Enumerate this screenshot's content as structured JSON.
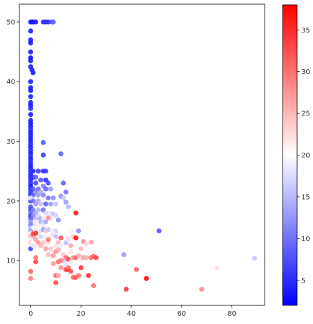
{
  "chart_data": {
    "type": "scatter",
    "title": "",
    "xlabel": "",
    "ylabel": "",
    "xlim": [
      -4.5,
      93
    ],
    "ylim": [
      2.5,
      53
    ],
    "xticks": [
      0,
      20,
      40,
      60,
      80
    ],
    "yticks": [
      10,
      20,
      30,
      40,
      50
    ],
    "grid": false,
    "colormap": {
      "name": "bwr",
      "low_color": "#0000ff",
      "mid_color": "#ffffff",
      "high_color": "#ff0000",
      "range": [
        2,
        38
      ],
      "ticks": [
        5,
        10,
        15,
        20,
        25,
        30,
        35
      ]
    },
    "points": [
      [
        0,
        50,
        4
      ],
      [
        1,
        50,
        4
      ],
      [
        0.5,
        50,
        4
      ],
      [
        2,
        50,
        4
      ],
      [
        5,
        50,
        5
      ],
      [
        6,
        50,
        5
      ],
      [
        7,
        50,
        5
      ],
      [
        8.5,
        50,
        8
      ],
      [
        9,
        50,
        9
      ],
      [
        0,
        48.5,
        4
      ],
      [
        0,
        47,
        4
      ],
      [
        0,
        46.5,
        4
      ],
      [
        0,
        45,
        4
      ],
      [
        0,
        44,
        3
      ],
      [
        0,
        43.5,
        4
      ],
      [
        0,
        42.5,
        4
      ],
      [
        0.5,
        42,
        4
      ],
      [
        1,
        41.5,
        4
      ],
      [
        0,
        40,
        4
      ],
      [
        0,
        39,
        4
      ],
      [
        0,
        38.5,
        4
      ],
      [
        0,
        37.5,
        4
      ],
      [
        0,
        36.5,
        4
      ],
      [
        0,
        36,
        4
      ],
      [
        0,
        35.5,
        5
      ],
      [
        0,
        34.5,
        4
      ],
      [
        0,
        33.5,
        4
      ],
      [
        0,
        33,
        4
      ],
      [
        0,
        32.5,
        4
      ],
      [
        0,
        32,
        5
      ],
      [
        0,
        31.5,
        4
      ],
      [
        0,
        31,
        4
      ],
      [
        0,
        30.5,
        4
      ],
      [
        0,
        30,
        4
      ],
      [
        0,
        29.5,
        5
      ],
      [
        0,
        29,
        4
      ],
      [
        0,
        28.5,
        5
      ],
      [
        0,
        28,
        4
      ],
      [
        0,
        27.5,
        5
      ],
      [
        0,
        27,
        4
      ],
      [
        0,
        26.5,
        5
      ],
      [
        0,
        26,
        4
      ],
      [
        5,
        29.8,
        8
      ],
      [
        5,
        27.7,
        6
      ],
      [
        12,
        27.9,
        9
      ],
      [
        0,
        25.5,
        4
      ],
      [
        0,
        25,
        5
      ],
      [
        1,
        25,
        5
      ],
      [
        3,
        25,
        6
      ],
      [
        5,
        25,
        5
      ],
      [
        6,
        25,
        6
      ],
      [
        0,
        24.5,
        5
      ],
      [
        0,
        24,
        4
      ],
      [
        1,
        24,
        6
      ],
      [
        2,
        24,
        9
      ],
      [
        0,
        23.5,
        5
      ],
      [
        0,
        23,
        5
      ],
      [
        2,
        23,
        7
      ],
      [
        4,
        23.5,
        8
      ],
      [
        6,
        23.5,
        5
      ],
      [
        7,
        23,
        7
      ],
      [
        0,
        22.5,
        4
      ],
      [
        0,
        22,
        5
      ],
      [
        1,
        22,
        8
      ],
      [
        3,
        22,
        10
      ],
      [
        5,
        22.5,
        11
      ],
      [
        6,
        22,
        9
      ],
      [
        8,
        22,
        13
      ],
      [
        13,
        23,
        9
      ],
      [
        14,
        21.5,
        10
      ],
      [
        0,
        21.5,
        6
      ],
      [
        0,
        21,
        5
      ],
      [
        1,
        21,
        9
      ],
      [
        2,
        21.5,
        12
      ],
      [
        3,
        21,
        13
      ],
      [
        4,
        21.5,
        14
      ],
      [
        5,
        21,
        11
      ],
      [
        7,
        20.5,
        10
      ],
      [
        9,
        20.5,
        12
      ],
      [
        12,
        20.8,
        12
      ],
      [
        13,
        20.5,
        16
      ],
      [
        0,
        20,
        7
      ],
      [
        0,
        20.5,
        18
      ],
      [
        1,
        20,
        10
      ],
      [
        2,
        19.5,
        13
      ],
      [
        3,
        20,
        14
      ],
      [
        4,
        19.5,
        16
      ],
      [
        6,
        19.5,
        9
      ],
      [
        8,
        19.5,
        13
      ],
      [
        10,
        19.5,
        16
      ],
      [
        14,
        19.8,
        13
      ],
      [
        15,
        19,
        15
      ],
      [
        0,
        19,
        8
      ],
      [
        0,
        18.5,
        7
      ],
      [
        1,
        18.5,
        11
      ],
      [
        2,
        18,
        14
      ],
      [
        3,
        18.5,
        15
      ],
      [
        5,
        18.5,
        10
      ],
      [
        6,
        18,
        17
      ],
      [
        8,
        18,
        18
      ],
      [
        9,
        17.8,
        16
      ],
      [
        10,
        17.6,
        17
      ],
      [
        0,
        18,
        10
      ],
      [
        0,
        17.5,
        6
      ],
      [
        1,
        17.5,
        12
      ],
      [
        2,
        17,
        15
      ],
      [
        3,
        17.5,
        17
      ],
      [
        4,
        17,
        13
      ],
      [
        5,
        17,
        19
      ],
      [
        7,
        17,
        21
      ],
      [
        8,
        17,
        18
      ],
      [
        11,
        16.8,
        12
      ],
      [
        0,
        17,
        9
      ],
      [
        0,
        16.5,
        13
      ],
      [
        1,
        16,
        17
      ],
      [
        2,
        16.5,
        19
      ],
      [
        3,
        16,
        21
      ],
      [
        4,
        16.5,
        15
      ],
      [
        5,
        16,
        22
      ],
      [
        6,
        16.5,
        14
      ],
      [
        8,
        16,
        20
      ],
      [
        0,
        16,
        11
      ],
      [
        0,
        15.5,
        15
      ],
      [
        1,
        15.5,
        20
      ],
      [
        2,
        15,
        23
      ],
      [
        4,
        15,
        18
      ],
      [
        5,
        15.2,
        13
      ],
      [
        6,
        15,
        24
      ],
      [
        7,
        15.2,
        16
      ],
      [
        9,
        15,
        21
      ],
      [
        10,
        15,
        17
      ],
      [
        0,
        15,
        14
      ],
      [
        0,
        14.5,
        22
      ],
      [
        0,
        14,
        25
      ],
      [
        1,
        14,
        27
      ],
      [
        2,
        14.5,
        24
      ],
      [
        3,
        14,
        21
      ],
      [
        4,
        14,
        17
      ],
      [
        6,
        14,
        19
      ],
      [
        8,
        14,
        22
      ],
      [
        9,
        14.5,
        18
      ],
      [
        10,
        14,
        15
      ],
      [
        0,
        13.5,
        19
      ],
      [
        0,
        13,
        23
      ],
      [
        1,
        13,
        20
      ],
      [
        2,
        13.5,
        26
      ],
      [
        3,
        13,
        28
      ],
      [
        5,
        13,
        24
      ],
      [
        7,
        13,
        22
      ],
      [
        9,
        13.5,
        20
      ],
      [
        11,
        13,
        25
      ],
      [
        12,
        13.8,
        32
      ],
      [
        0,
        12,
        7
      ],
      [
        1,
        12.5,
        18
      ],
      [
        2,
        12.5,
        22
      ],
      [
        4,
        12.5,
        25
      ],
      [
        6,
        12,
        27
      ],
      [
        8,
        12,
        24
      ],
      [
        10,
        12.5,
        22
      ],
      [
        12,
        12.5,
        19
      ],
      [
        14,
        13,
        15
      ],
      [
        15,
        13.5,
        18
      ],
      [
        1,
        14.5,
        33
      ],
      [
        2,
        14.6,
        34
      ],
      [
        7,
        13.5,
        30
      ],
      [
        7,
        17.2,
        28
      ],
      [
        15,
        13.7,
        22
      ],
      [
        16,
        15,
        19
      ],
      [
        17,
        14,
        24
      ],
      [
        17,
        17.2,
        20
      ],
      [
        18,
        18,
        36
      ],
      [
        19,
        15,
        12
      ],
      [
        18,
        13.8,
        37
      ],
      [
        16,
        11.5,
        22
      ],
      [
        16,
        12.5,
        26
      ],
      [
        20,
        12,
        25
      ],
      [
        21,
        13.2,
        28
      ],
      [
        22,
        12.8,
        23
      ],
      [
        24,
        13.1,
        26
      ],
      [
        25,
        11.5,
        21
      ],
      [
        23,
        16.5,
        20
      ],
      [
        28,
        16.5,
        20
      ],
      [
        10,
        11.5,
        28
      ],
      [
        11,
        11.8,
        26
      ],
      [
        13,
        11,
        24
      ],
      [
        14,
        10.5,
        30
      ],
      [
        15,
        10.2,
        33
      ],
      [
        13,
        10,
        16
      ],
      [
        14,
        9.5,
        18
      ],
      [
        16,
        9.8,
        22
      ],
      [
        17,
        10.5,
        28
      ],
      [
        18,
        10.5,
        31
      ],
      [
        19,
        10.8,
        26
      ],
      [
        20,
        10.2,
        22
      ],
      [
        21,
        10.5,
        27
      ],
      [
        22,
        10.5,
        26
      ],
      [
        24,
        10.5,
        30
      ],
      [
        25,
        10.7,
        31
      ],
      [
        26,
        10.5,
        33
      ],
      [
        7,
        11,
        25
      ],
      [
        9,
        10.8,
        27
      ],
      [
        12,
        10,
        29
      ],
      [
        2,
        9.8,
        33
      ],
      [
        2,
        10.5,
        30
      ],
      [
        9,
        9.5,
        27
      ],
      [
        11,
        9.8,
        30
      ],
      [
        12,
        8.8,
        28
      ],
      [
        0,
        8.2,
        31
      ],
      [
        0,
        7,
        29
      ],
      [
        10,
        7.5,
        31
      ],
      [
        11,
        7.5,
        26
      ],
      [
        10,
        6.3,
        33
      ],
      [
        14,
        8.5,
        33
      ],
      [
        15,
        8.5,
        36
      ],
      [
        15,
        8.8,
        30
      ],
      [
        16,
        8.2,
        32
      ],
      [
        17,
        7.2,
        31
      ],
      [
        18,
        7.2,
        32
      ],
      [
        19,
        7.5,
        30
      ],
      [
        20,
        8.8,
        34
      ],
      [
        23,
        7.5,
        35
      ],
      [
        25,
        5.8,
        30
      ],
      [
        38,
        5.2,
        34
      ],
      [
        42,
        8.5,
        31
      ],
      [
        46,
        7,
        38
      ],
      [
        51,
        15,
        8
      ],
      [
        37,
        11,
        13
      ],
      [
        68,
        5.2,
        28
      ],
      [
        74,
        8.8,
        22
      ],
      [
        89,
        10.4,
        16
      ]
    ]
  }
}
